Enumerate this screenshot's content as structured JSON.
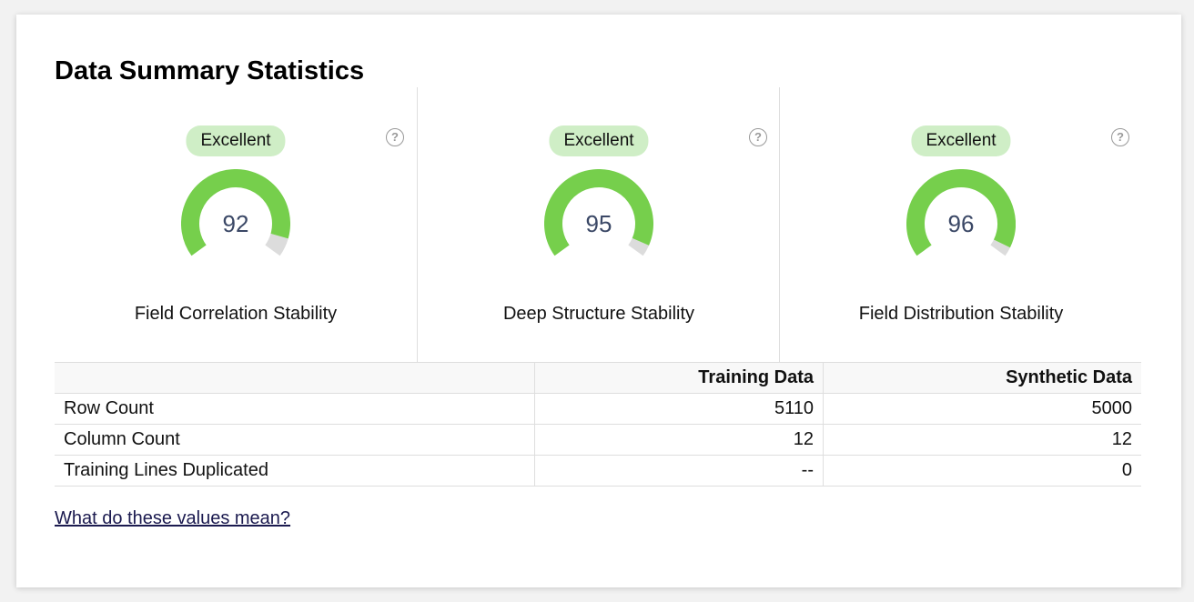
{
  "header": {
    "title": "Data Summary Statistics"
  },
  "gauge_range": [
    0,
    100
  ],
  "metrics": [
    {
      "badge": "Excellent",
      "score": 92,
      "label": "Field Correlation Stability"
    },
    {
      "badge": "Excellent",
      "score": 95,
      "label": "Deep Structure Stability"
    },
    {
      "badge": "Excellent",
      "score": 96,
      "label": "Field Distribution Stability"
    }
  ],
  "help_icon": "?",
  "table": {
    "columns": [
      "Training Data",
      "Synthetic Data"
    ],
    "rows": [
      [
        "Row Count",
        5110,
        5000
      ],
      [
        "Column Count",
        12,
        12
      ],
      [
        "Training Lines Duplicated",
        "--",
        0
      ]
    ]
  },
  "link": "What do these values mean?"
}
